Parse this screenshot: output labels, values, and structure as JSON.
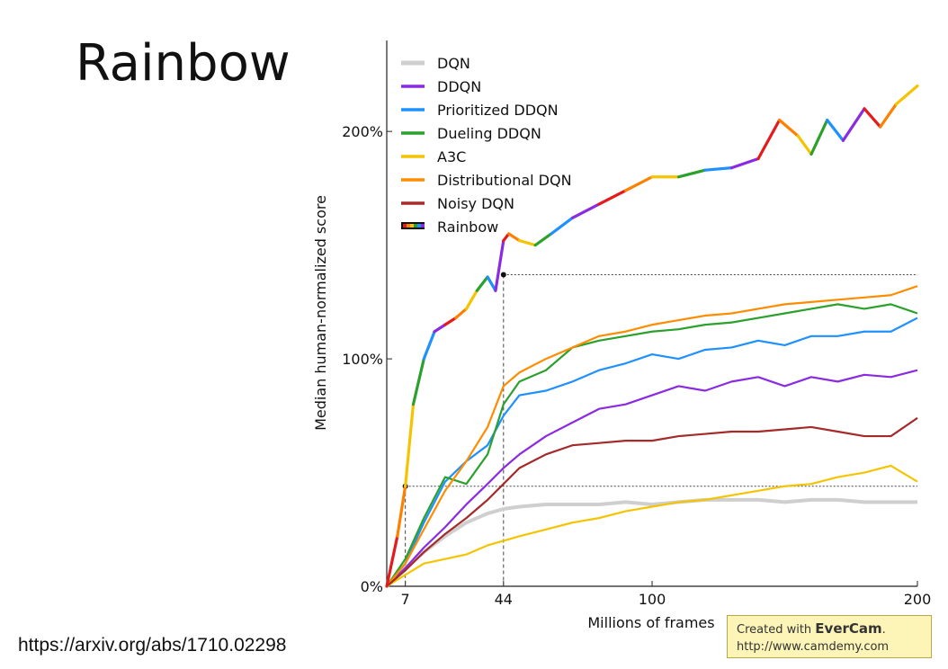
{
  "slide": {
    "title": "Rainbow",
    "source_url": "https://arxiv.org/abs/1710.02298"
  },
  "watermark": {
    "prefix": "Created with ",
    "brand": "EverCam",
    "suffix": ".",
    "url": "http://www.camdemy.com"
  },
  "chart_data": {
    "type": "line",
    "xlabel": "Millions of frames",
    "ylabel": "Median human-normalized score",
    "xlim": [
      0,
      200
    ],
    "ylim": [
      0,
      2.4
    ],
    "xticks": [
      7,
      44,
      100,
      200
    ],
    "yticks": [
      {
        "value": 0,
        "label": "0%"
      },
      {
        "value": 1,
        "label": "100%"
      },
      {
        "value": 2,
        "label": "200%"
      }
    ],
    "reference_lines": [
      {
        "y": 0.44,
        "x_from": 7,
        "x_to": 200,
        "drop_at_x": 7
      },
      {
        "y": 1.37,
        "x_from": 44,
        "x_to": 200,
        "drop_at_x": 44
      }
    ],
    "legend_position": "top-left",
    "series": [
      {
        "name": "DQN",
        "color": "#cfcfcf",
        "x": [
          0,
          7,
          14,
          22,
          30,
          38,
          44,
          50,
          60,
          70,
          80,
          90,
          100,
          110,
          120,
          130,
          140,
          150,
          160,
          170,
          180,
          190,
          200
        ],
        "y": [
          0,
          0.08,
          0.15,
          0.22,
          0.28,
          0.32,
          0.34,
          0.35,
          0.36,
          0.36,
          0.36,
          0.37,
          0.36,
          0.37,
          0.38,
          0.38,
          0.38,
          0.37,
          0.38,
          0.38,
          0.37,
          0.37,
          0.37
        ]
      },
      {
        "name": "DDQN",
        "color": "#8a2be2",
        "x": [
          0,
          7,
          14,
          22,
          30,
          38,
          44,
          50,
          60,
          70,
          80,
          90,
          100,
          110,
          120,
          130,
          140,
          150,
          160,
          170,
          180,
          190,
          200
        ],
        "y": [
          0,
          0.08,
          0.17,
          0.26,
          0.36,
          0.45,
          0.52,
          0.58,
          0.66,
          0.72,
          0.78,
          0.8,
          0.84,
          0.88,
          0.86,
          0.9,
          0.92,
          0.88,
          0.92,
          0.9,
          0.93,
          0.92,
          0.95
        ]
      },
      {
        "name": "Prioritized DDQN",
        "color": "#1e90ff",
        "x": [
          0,
          7,
          14,
          22,
          30,
          38,
          44,
          50,
          60,
          70,
          80,
          90,
          100,
          110,
          120,
          130,
          140,
          150,
          160,
          170,
          180,
          190,
          200
        ],
        "y": [
          0,
          0.1,
          0.28,
          0.46,
          0.55,
          0.62,
          0.75,
          0.84,
          0.86,
          0.9,
          0.95,
          0.98,
          1.02,
          1.0,
          1.04,
          1.05,
          1.08,
          1.06,
          1.1,
          1.1,
          1.12,
          1.12,
          1.18
        ]
      },
      {
        "name": "Dueling DDQN",
        "color": "#2ca02c",
        "x": [
          0,
          7,
          14,
          22,
          30,
          38,
          44,
          50,
          60,
          70,
          80,
          90,
          100,
          110,
          120,
          130,
          140,
          150,
          160,
          170,
          180,
          190,
          200
        ],
        "y": [
          0,
          0.12,
          0.3,
          0.48,
          0.45,
          0.58,
          0.8,
          0.9,
          0.95,
          1.05,
          1.08,
          1.1,
          1.12,
          1.13,
          1.15,
          1.16,
          1.18,
          1.2,
          1.22,
          1.24,
          1.22,
          1.24,
          1.2
        ]
      },
      {
        "name": "A3C",
        "color": "#f5c400",
        "x": [
          0,
          7,
          14,
          22,
          30,
          38,
          44,
          50,
          60,
          70,
          80,
          90,
          100,
          110,
          120,
          130,
          140,
          150,
          160,
          170,
          180,
          190,
          200
        ],
        "y": [
          0,
          0.05,
          0.1,
          0.12,
          0.14,
          0.18,
          0.2,
          0.22,
          0.25,
          0.28,
          0.3,
          0.33,
          0.35,
          0.37,
          0.38,
          0.4,
          0.42,
          0.44,
          0.45,
          0.48,
          0.5,
          0.53,
          0.46
        ]
      },
      {
        "name": "Distributional DQN",
        "color": "#ff8c00",
        "x": [
          0,
          7,
          14,
          22,
          30,
          38,
          44,
          50,
          60,
          70,
          80,
          90,
          100,
          110,
          120,
          130,
          140,
          150,
          160,
          170,
          180,
          190,
          200
        ],
        "y": [
          0,
          0.1,
          0.25,
          0.42,
          0.55,
          0.7,
          0.88,
          0.94,
          1.0,
          1.05,
          1.1,
          1.12,
          1.15,
          1.17,
          1.19,
          1.2,
          1.22,
          1.24,
          1.25,
          1.26,
          1.27,
          1.28,
          1.32
        ]
      },
      {
        "name": "Noisy DQN",
        "color": "#a52a2a",
        "x": [
          0,
          7,
          14,
          22,
          30,
          38,
          44,
          50,
          60,
          70,
          80,
          90,
          100,
          110,
          120,
          130,
          140,
          150,
          160,
          170,
          180,
          190,
          200
        ],
        "y": [
          0,
          0.07,
          0.15,
          0.23,
          0.3,
          0.38,
          0.45,
          0.52,
          0.58,
          0.62,
          0.63,
          0.64,
          0.64,
          0.66,
          0.67,
          0.68,
          0.68,
          0.69,
          0.7,
          0.68,
          0.66,
          0.66,
          0.74
        ]
      },
      {
        "name": "Rainbow",
        "color": "#9400d3",
        "rainbow": true,
        "x": [
          0,
          4,
          7,
          10,
          14,
          18,
          22,
          26,
          30,
          34,
          38,
          41,
          44,
          46,
          50,
          56,
          62,
          70,
          80,
          90,
          100,
          110,
          120,
          130,
          140,
          148,
          155,
          160,
          166,
          172,
          180,
          186,
          192,
          200
        ],
        "y": [
          0,
          0.22,
          0.44,
          0.8,
          1.0,
          1.12,
          1.15,
          1.18,
          1.22,
          1.3,
          1.36,
          1.3,
          1.52,
          1.55,
          1.52,
          1.5,
          1.55,
          1.62,
          1.68,
          1.74,
          1.8,
          1.8,
          1.83,
          1.84,
          1.88,
          2.05,
          1.98,
          1.9,
          2.05,
          1.96,
          2.1,
          2.02,
          2.12,
          2.2
        ]
      }
    ]
  }
}
